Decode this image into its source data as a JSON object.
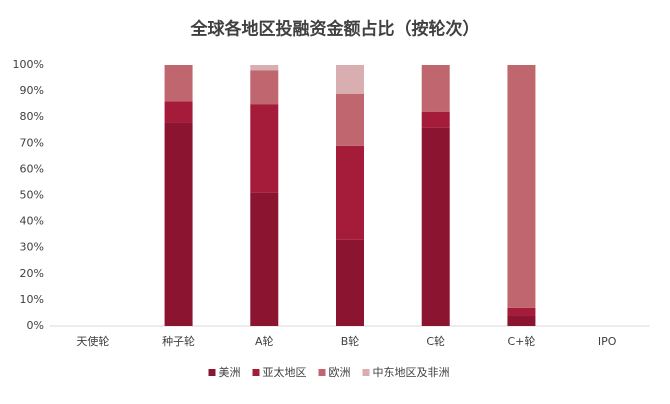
{
  "chart_data": {
    "type": "stacked_bar_percent",
    "title": "全球各地区投融资金额占比（按轮次）",
    "categories": [
      "天使轮",
      "种子轮",
      "A轮",
      "B轮",
      "C轮",
      "C+轮",
      "IPO"
    ],
    "series": [
      {
        "name": "美洲",
        "color": "#8b1530",
        "values": [
          null,
          78,
          51,
          33,
          76,
          4,
          null
        ]
      },
      {
        "name": "亚太地区",
        "color": "#a51c3b",
        "values": [
          null,
          8,
          34,
          36,
          6,
          3,
          null
        ]
      },
      {
        "name": "欧洲",
        "color": "#c0666f",
        "values": [
          null,
          14,
          13,
          20,
          18,
          93,
          null
        ]
      },
      {
        "name": "中东地区及非洲",
        "color": "#d9aeb1",
        "values": [
          null,
          0,
          2,
          11,
          0,
          0,
          null
        ]
      }
    ],
    "ylim": [
      0,
      100
    ],
    "yticks": [
      {
        "value": 0,
        "label": "0%"
      },
      {
        "value": 10,
        "label": "10%"
      },
      {
        "value": 20,
        "label": "20%"
      },
      {
        "value": 30,
        "label": "30%"
      },
      {
        "value": 40,
        "label": "40%"
      },
      {
        "value": 50,
        "label": "50%"
      },
      {
        "value": 60,
        "label": "60%"
      },
      {
        "value": 70,
        "label": "70%"
      },
      {
        "value": 80,
        "label": "80%"
      },
      {
        "value": 90,
        "label": "90%"
      },
      {
        "value": 100,
        "label": "100%"
      }
    ],
    "grid": false,
    "legend": "bottom"
  }
}
